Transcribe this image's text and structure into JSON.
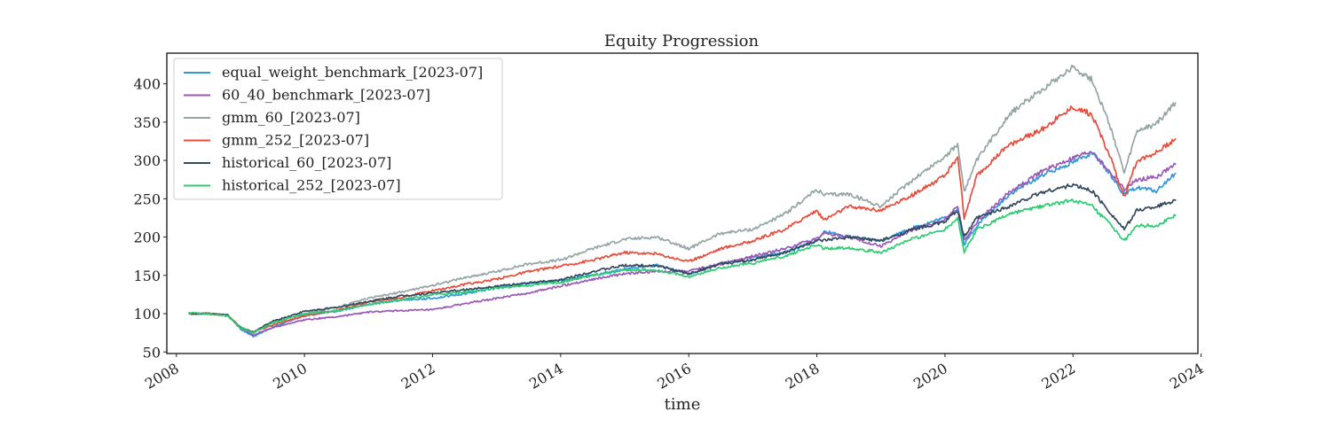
{
  "chart_data": {
    "type": "line",
    "title": "Equity Progression",
    "xlabel": "time",
    "ylabel": "",
    "xlim": [
      2007.85,
      2023.95
    ],
    "ylim": [
      48,
      440
    ],
    "x_ticks": [
      2008,
      2010,
      2012,
      2014,
      2016,
      2018,
      2020,
      2022,
      2024
    ],
    "x_tick_labels": [
      "2008",
      "2010",
      "2012",
      "2014",
      "2016",
      "2018",
      "2020",
      "2022",
      "2024"
    ],
    "y_ticks": [
      50,
      100,
      150,
      200,
      250,
      300,
      350,
      400
    ],
    "y_tick_labels": [
      "50",
      "100",
      "150",
      "200",
      "250",
      "300",
      "350",
      "400"
    ],
    "grid": false,
    "legend_position": "top-left",
    "x": [
      2008.2,
      2008.5,
      2008.8,
      2009.0,
      2009.2,
      2009.5,
      2010.0,
      2010.5,
      2011.0,
      2011.5,
      2012.0,
      2012.5,
      2013.0,
      2013.5,
      2014.0,
      2014.5,
      2015.0,
      2015.5,
      2016.0,
      2016.5,
      2017.0,
      2017.5,
      2018.0,
      2018.1,
      2018.5,
      2019.0,
      2019.5,
      2020.0,
      2020.2,
      2020.3,
      2020.5,
      2021.0,
      2021.5,
      2022.0,
      2022.3,
      2022.6,
      2022.8,
      2023.0,
      2023.3,
      2023.6
    ],
    "series": [
      {
        "name": "equal_weight_benchmark_[2023-07]",
        "color": "#3498db",
        "values": [
          100,
          100,
          98,
          80,
          70,
          82,
          98,
          103,
          112,
          118,
          120,
          126,
          134,
          140,
          143,
          150,
          158,
          163,
          152,
          165,
          173,
          180,
          195,
          208,
          200,
          195,
          212,
          225,
          236,
          190,
          215,
          255,
          280,
          298,
          310,
          280,
          255,
          265,
          260,
          283
        ]
      },
      {
        "name": "60_40_benchmark_[2023-07]",
        "color": "#9b59b6",
        "values": [
          100,
          100,
          98,
          82,
          72,
          82,
          92,
          96,
          102,
          104,
          105,
          113,
          120,
          127,
          136,
          145,
          152,
          155,
          156,
          165,
          175,
          185,
          198,
          205,
          200,
          188,
          210,
          222,
          241,
          195,
          220,
          258,
          285,
          303,
          312,
          282,
          262,
          275,
          278,
          295
        ]
      },
      {
        "name": "gmm_60_[2023-07]",
        "color": "#95a5a6",
        "values": [
          100,
          100,
          98,
          82,
          75,
          88,
          100,
          108,
          120,
          128,
          137,
          147,
          155,
          165,
          170,
          185,
          197,
          200,
          185,
          205,
          210,
          230,
          262,
          255,
          256,
          240,
          275,
          305,
          320,
          260,
          300,
          360,
          392,
          422,
          405,
          340,
          283,
          338,
          348,
          375
        ]
      },
      {
        "name": "gmm_252_[2023-07]",
        "color": "#e74c3c",
        "values": [
          100,
          100,
          98,
          82,
          76,
          85,
          97,
          104,
          115,
          121,
          130,
          138,
          145,
          155,
          162,
          170,
          180,
          178,
          168,
          185,
          195,
          210,
          235,
          222,
          240,
          235,
          255,
          280,
          305,
          225,
          280,
          320,
          340,
          370,
          360,
          300,
          252,
          300,
          310,
          328
        ]
      },
      {
        "name": "historical_60_[2023-07]",
        "color": "#34495e",
        "values": [
          100,
          100,
          98,
          82,
          76,
          90,
          103,
          108,
          116,
          123,
          127,
          131,
          136,
          140,
          144,
          155,
          163,
          163,
          152,
          165,
          170,
          180,
          195,
          195,
          200,
          195,
          210,
          220,
          235,
          200,
          225,
          240,
          258,
          268,
          260,
          230,
          210,
          235,
          240,
          248
        ]
      },
      {
        "name": "historical_252_[2023-07]",
        "color": "#2ecc71",
        "values": [
          101,
          100,
          97,
          82,
          75,
          88,
          100,
          104,
          112,
          118,
          125,
          128,
          133,
          137,
          141,
          150,
          157,
          157,
          148,
          160,
          166,
          175,
          190,
          185,
          186,
          180,
          198,
          210,
          225,
          180,
          210,
          230,
          240,
          248,
          240,
          215,
          195,
          215,
          215,
          228
        ]
      }
    ]
  }
}
